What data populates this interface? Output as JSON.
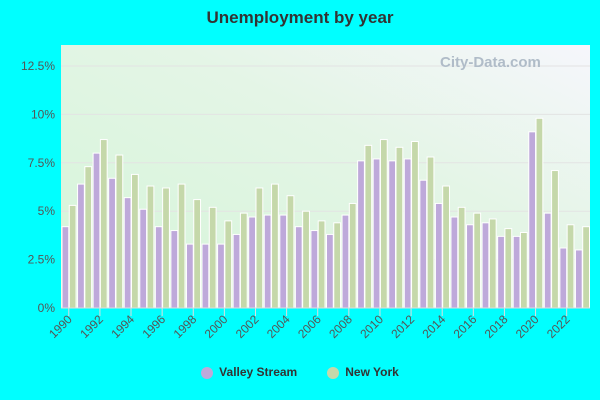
{
  "chart_data": {
    "type": "bar",
    "title": "Unemployment by year",
    "watermark": "City-Data.com",
    "categories": [
      1990,
      1991,
      1992,
      1993,
      1994,
      1995,
      1996,
      1997,
      1998,
      1999,
      2000,
      2001,
      2002,
      2003,
      2004,
      2005,
      2006,
      2007,
      2008,
      2009,
      2010,
      2011,
      2012,
      2013,
      2014,
      2015,
      2016,
      2017,
      2018,
      2019,
      2020,
      2021,
      2022,
      2023
    ],
    "x_tick_labels": [
      "1990",
      "1992",
      "1994",
      "1996",
      "1998",
      "2000",
      "2002",
      "2004",
      "2006",
      "2008",
      "2010",
      "2012",
      "2014",
      "2016",
      "2018",
      "2020",
      "2022"
    ],
    "y_tick_labels": [
      "0%",
      "2.5%",
      "5%",
      "7.5%",
      "10%",
      "12.5%"
    ],
    "ylim": [
      0,
      13.5
    ],
    "grid": true,
    "legend_position": "bottom",
    "series": [
      {
        "name": "Valley Stream",
        "color": "#bea9da",
        "values": [
          4.2,
          6.4,
          8.0,
          6.7,
          5.7,
          5.1,
          4.2,
          4.0,
          3.3,
          3.3,
          3.3,
          3.8,
          4.7,
          4.8,
          4.8,
          4.2,
          4.0,
          3.8,
          4.8,
          7.6,
          7.7,
          7.6,
          7.7,
          6.6,
          5.4,
          4.7,
          4.3,
          4.4,
          3.7,
          3.7,
          9.1,
          4.9,
          3.1,
          3.0
        ]
      },
      {
        "name": "New York",
        "color": "#c5d8aa",
        "values": [
          5.3,
          7.3,
          8.7,
          7.9,
          6.9,
          6.3,
          6.2,
          6.4,
          5.6,
          5.2,
          4.5,
          4.9,
          6.2,
          6.4,
          5.8,
          5.0,
          4.5,
          4.4,
          5.4,
          8.4,
          8.7,
          8.3,
          8.6,
          7.8,
          6.3,
          5.2,
          4.9,
          4.6,
          4.1,
          3.9,
          9.8,
          7.1,
          4.3,
          4.2
        ]
      }
    ]
  }
}
